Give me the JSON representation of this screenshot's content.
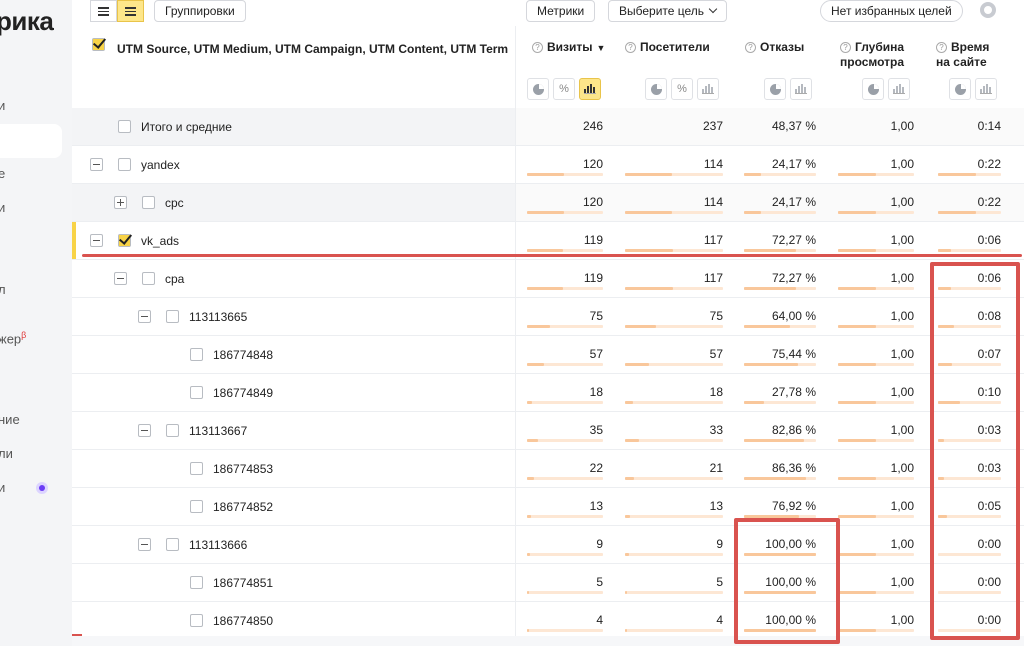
{
  "sidebar": {
    "brand": "рика",
    "items": [
      "и",
      "е",
      "и",
      "л",
      "жер",
      "ние",
      "ли",
      "и"
    ],
    "badge": "β"
  },
  "toolbar": {
    "groupings_label": "Группировки",
    "metrics_label": "Метрики",
    "goal_select": "Выберите цель",
    "favorites_label": "Нет избранных целей"
  },
  "header": {
    "dimensions": "UTM Source, UTM Medium, UTM Campaign, UTM Content, UTM Term",
    "columns": [
      {
        "line1": "Визиты",
        "line2": "",
        "sorted": true
      },
      {
        "line1": "Посетители",
        "line2": ""
      },
      {
        "line1": "Отказы",
        "line2": ""
      },
      {
        "line1": "Глубина",
        "line2": "просмотра"
      },
      {
        "line1": "Время",
        "line2": "на сайте"
      }
    ],
    "sort_arrow": "▼",
    "q_icon": "?",
    "percent_icon": "%"
  },
  "rows": [
    {
      "label": "Итого и средние",
      "visits": "246",
      "visitors": "237",
      "bounce": "48,37 %",
      "depth": "1,00",
      "time": "0:14",
      "bars": false,
      "grey": true
    },
    {
      "label": "yandex",
      "visits": "120",
      "visitors": "114",
      "bounce": "24,17 %",
      "depth": "1,00",
      "time": "0:22",
      "bars": [
        0.49,
        0.48,
        0.24,
        0.5,
        0.6
      ]
    },
    {
      "label": "cpc",
      "visits": "120",
      "visitors": "114",
      "bounce": "24,17 %",
      "depth": "1,00",
      "time": "0:22",
      "bars": [
        0.49,
        0.48,
        0.24,
        0.5,
        0.6
      ],
      "grey": true
    },
    {
      "label": "vk_ads",
      "visits": "119",
      "visitors": "117",
      "bounce": "72,27 %",
      "depth": "1,00",
      "time": "0:06",
      "bars": [
        0.48,
        0.49,
        0.72,
        0.5,
        0.2
      ],
      "checked": true,
      "selected": true
    },
    {
      "label": "cpa",
      "visits": "119",
      "visitors": "117",
      "bounce": "72,27 %",
      "depth": "1,00",
      "time": "0:06",
      "bars": [
        0.48,
        0.49,
        0.72,
        0.5,
        0.2
      ]
    },
    {
      "label": "113113665",
      "visits": "75",
      "visitors": "75",
      "bounce": "64,00 %",
      "depth": "1,00",
      "time": "0:08",
      "bars": [
        0.3,
        0.32,
        0.64,
        0.5,
        0.25
      ]
    },
    {
      "label": "186774848",
      "visits": "57",
      "visitors": "57",
      "bounce": "75,44 %",
      "depth": "1,00",
      "time": "0:07",
      "bars": [
        0.23,
        0.24,
        0.75,
        0.5,
        0.22
      ]
    },
    {
      "label": "186774849",
      "visits": "18",
      "visitors": "18",
      "bounce": "27,78 %",
      "depth": "1,00",
      "time": "0:10",
      "bars": [
        0.07,
        0.08,
        0.28,
        0.5,
        0.35
      ]
    },
    {
      "label": "113113667",
      "visits": "35",
      "visitors": "33",
      "bounce": "82,86 %",
      "depth": "1,00",
      "time": "0:03",
      "bars": [
        0.14,
        0.14,
        0.83,
        0.5,
        0.1
      ]
    },
    {
      "label": "186774853",
      "visits": "22",
      "visitors": "21",
      "bounce": "86,36 %",
      "depth": "1,00",
      "time": "0:03",
      "bars": [
        0.09,
        0.09,
        0.86,
        0.5,
        0.1
      ]
    },
    {
      "label": "186774852",
      "visits": "13",
      "visitors": "13",
      "bounce": "76,92 %",
      "depth": "1,00",
      "time": "0:05",
      "bars": [
        0.05,
        0.05,
        0.77,
        0.5,
        0.15
      ]
    },
    {
      "label": "113113666",
      "visits": "9",
      "visitors": "9",
      "bounce": "100,00 %",
      "depth": "1,00",
      "time": "0:00",
      "bars": [
        0.04,
        0.04,
        1.0,
        0.5,
        0.0
      ]
    },
    {
      "label": "186774851",
      "visits": "5",
      "visitors": "5",
      "bounce": "100,00 %",
      "depth": "1,00",
      "time": "0:00",
      "bars": [
        0.02,
        0.02,
        1.0,
        0.5,
        0.0
      ]
    },
    {
      "label": "186774850",
      "visits": "4",
      "visitors": "4",
      "bounce": "100,00 %",
      "depth": "1,00",
      "time": "0:00",
      "bars": [
        0.02,
        0.02,
        1.0,
        0.5,
        0.0
      ]
    }
  ],
  "colors": {
    "accent": "#f8d347",
    "annotation": "#d9534f",
    "bar_fill": "#f9c79b",
    "bar_track": "#fde7d4"
  }
}
